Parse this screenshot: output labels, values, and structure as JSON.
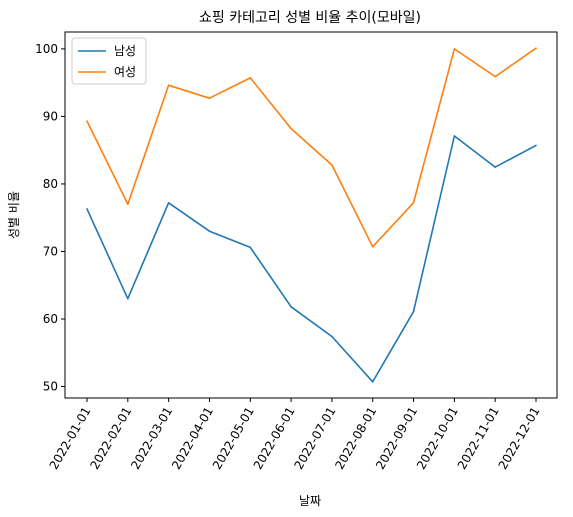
{
  "chart_data": {
    "type": "line",
    "title": "쇼핑 카테고리 성별 비율 추이(모바일)",
    "xlabel": "날짜",
    "ylabel": "성별 비율",
    "x": [
      "2022-01-01",
      "2022-02-01",
      "2022-03-01",
      "2022-04-01",
      "2022-05-01",
      "2022-06-01",
      "2022-07-01",
      "2022-08-01",
      "2022-09-01",
      "2022-10-01",
      "2022-11-01",
      "2022-12-01"
    ],
    "series": [
      {
        "name": "남성",
        "color": "#1f77b4",
        "values": [
          76.3,
          63.0,
          77.2,
          73.0,
          70.6,
          61.8,
          57.4,
          50.7,
          61.1,
          87.1,
          82.5,
          85.7
        ]
      },
      {
        "name": "여성",
        "color": "#ff7f0e",
        "values": [
          89.3,
          77.0,
          94.6,
          92.7,
          95.7,
          88.2,
          82.8,
          70.7,
          77.2,
          100.0,
          95.9,
          100.1
        ]
      }
    ],
    "yticks": [
      50,
      60,
      70,
      80,
      90,
      100
    ],
    "ylim": [
      48.3,
      102.5
    ],
    "grid": false,
    "legend": "top-left"
  }
}
